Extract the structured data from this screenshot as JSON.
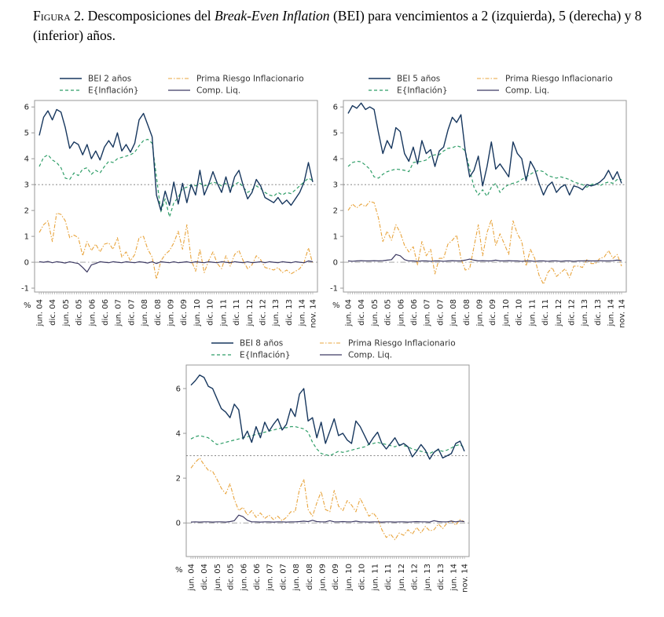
{
  "title": {
    "label": "Figura 2.",
    "pre": "  Descomposiciones del ",
    "italic": "Break-Even Inflation",
    "post": " (BEI) para vencimientos a 2 (izquierda), 5 (derecha) y 8 (inferior) años."
  },
  "axis": {
    "percent_label": "%",
    "n_months": 126,
    "x_tick_months": [
      0,
      6,
      12,
      18,
      24,
      30,
      36,
      42,
      48,
      54,
      60,
      66,
      72,
      78,
      84,
      90,
      96,
      102,
      108,
      114,
      120,
      125
    ],
    "x_tick_labels": [
      "jun. 04",
      "dic. 04",
      "jun. 05",
      "dic. 05",
      "jun. 06",
      "dic. 06",
      "jun. 07",
      "dic. 07",
      "jun. 08",
      "dic. 08",
      "jun. 09",
      "dic. 09",
      "jun. 10",
      "dic. 10",
      "jun. 11",
      "dic. 11",
      "jun. 12",
      "dic. 12",
      "jun. 13",
      "dic. 13",
      "jun. 14",
      "nov. 14"
    ]
  },
  "colors": {
    "bei": "#17375e",
    "einf": "#2f9e68",
    "prima": "#e8a43d",
    "cliq": "#3d3a63",
    "ref3": "#777777",
    "zero": "#999999",
    "box": "#999999",
    "text": "#222222",
    "legend_text": "#333333"
  },
  "chart_data": [
    {
      "type": "line",
      "title": "BEI 2 años",
      "x_unit": "meses desde jun-2004 (muestras bimestrales, jun. 04 a nov. 14)",
      "ylabel": "%",
      "ylim": [
        -1.15,
        6.25
      ],
      "yticks": [
        -1,
        0,
        1,
        2,
        3,
        4,
        5,
        6
      ],
      "reference_lines": [
        3,
        0
      ],
      "grid": false,
      "legend_position": "top",
      "series": [
        {
          "name": "BEI 2 años",
          "key": "bei",
          "values": [
            4.9,
            5.6,
            5.85,
            5.5,
            5.9,
            5.8,
            5.2,
            4.4,
            4.65,
            4.55,
            4.15,
            4.55,
            4.0,
            4.3,
            3.95,
            4.45,
            4.7,
            4.45,
            5.0,
            4.3,
            4.55,
            4.25,
            4.6,
            5.5,
            5.75,
            5.3,
            4.85,
            2.6,
            2.0,
            2.75,
            2.2,
            3.1,
            2.25,
            3.05,
            2.3,
            3.0,
            2.6,
            3.55,
            2.6,
            3.0,
            3.5,
            3.05,
            2.7,
            3.3,
            2.7,
            3.3,
            3.55,
            2.95,
            2.45,
            2.7,
            3.2,
            2.95,
            2.5,
            2.4,
            2.3,
            2.5,
            2.25,
            2.4,
            2.2,
            2.45,
            2.7,
            3.1,
            3.85,
            3.1
          ]
        },
        {
          "name": "E{Inflación}",
          "key": "einf",
          "values": [
            3.7,
            4.05,
            4.15,
            3.95,
            3.85,
            3.65,
            3.25,
            3.2,
            3.45,
            3.35,
            3.6,
            3.65,
            3.4,
            3.55,
            3.45,
            3.7,
            3.9,
            3.85,
            4.0,
            4.05,
            4.1,
            4.15,
            4.25,
            4.5,
            4.7,
            4.75,
            4.6,
            3.3,
            1.95,
            2.45,
            1.75,
            2.3,
            2.5,
            2.85,
            2.9,
            3.0,
            2.95,
            3.05,
            2.95,
            3.0,
            3.1,
            3.05,
            2.95,
            3.05,
            2.85,
            3.0,
            3.1,
            2.9,
            2.7,
            2.8,
            2.95,
            2.85,
            2.7,
            2.6,
            2.55,
            2.7,
            2.6,
            2.7,
            2.65,
            2.8,
            2.95,
            3.1,
            3.25,
            3.15
          ]
        },
        {
          "name": "Prima Riesgo Inflacionario",
          "key": "prima",
          "values": [
            1.15,
            1.45,
            1.6,
            0.8,
            1.9,
            1.85,
            1.6,
            0.95,
            1.05,
            0.95,
            0.25,
            0.8,
            0.45,
            0.7,
            0.4,
            0.7,
            0.75,
            0.5,
            0.95,
            0.2,
            0.4,
            0.05,
            0.3,
            0.95,
            1.0,
            0.5,
            0.2,
            -0.65,
            0.05,
            0.3,
            0.45,
            0.75,
            1.2,
            0.5,
            1.45,
            0.1,
            -0.35,
            0.5,
            -0.4,
            0.05,
            0.4,
            -0.05,
            -0.25,
            0.25,
            -0.15,
            0.3,
            0.45,
            0.05,
            -0.25,
            -0.1,
            0.25,
            0.1,
            -0.2,
            -0.25,
            -0.3,
            -0.2,
            -0.4,
            -0.3,
            -0.45,
            -0.35,
            -0.25,
            0.0,
            0.55,
            -0.05
          ]
        },
        {
          "name": "Comp. Liq.",
          "key": "cliq",
          "values": [
            0.02,
            0.0,
            0.03,
            -0.02,
            0.02,
            0.0,
            -0.03,
            0.02,
            -0.02,
            -0.05,
            -0.2,
            -0.38,
            -0.1,
            -0.05,
            0.02,
            0.0,
            -0.02,
            0.02,
            0.0,
            -0.02,
            0.02,
            0.0,
            -0.02,
            0.02,
            0.0,
            -0.03,
            0.02,
            -0.05,
            0.02,
            0.0,
            -0.02,
            0.02,
            -0.02,
            0.0,
            0.02,
            -0.02,
            0.02,
            0.0,
            -0.02,
            0.02,
            0.0,
            -0.02,
            0.02,
            0.0,
            -0.02,
            0.02,
            0.0,
            -0.02,
            0.02,
            -0.02,
            0.0,
            0.02,
            -0.02,
            0.02,
            0.0,
            -0.02,
            0.02,
            0.0,
            -0.02,
            0.02,
            0.0,
            -0.02,
            0.05,
            0.02
          ]
        }
      ]
    },
    {
      "type": "line",
      "title": "BEI 5 años",
      "x_unit": "meses desde jun-2004 (muestras bimestrales, jun. 04 a nov. 14)",
      "ylabel": "%",
      "ylim": [
        -1.15,
        6.25
      ],
      "yticks": [
        -1,
        0,
        1,
        2,
        3,
        4,
        5,
        6
      ],
      "reference_lines": [
        3,
        0
      ],
      "grid": false,
      "legend_position": "top",
      "series": [
        {
          "name": "BEI 5 años",
          "key": "bei",
          "values": [
            5.75,
            6.05,
            5.95,
            6.15,
            5.9,
            6.0,
            5.9,
            5.0,
            4.2,
            4.7,
            4.4,
            5.2,
            5.05,
            4.2,
            3.9,
            4.45,
            3.8,
            4.7,
            4.2,
            4.35,
            3.7,
            4.3,
            4.45,
            5.1,
            5.6,
            5.4,
            5.7,
            4.3,
            3.3,
            3.55,
            4.1,
            2.95,
            3.7,
            4.65,
            3.6,
            3.8,
            3.55,
            3.3,
            4.65,
            4.2,
            4.0,
            3.15,
            3.9,
            3.6,
            3.05,
            2.6,
            2.95,
            3.1,
            2.7,
            2.9,
            3.0,
            2.6,
            2.95,
            2.9,
            2.8,
            3.0,
            2.95,
            3.0,
            3.1,
            3.25,
            3.55,
            3.2,
            3.5,
            3.05
          ]
        },
        {
          "name": "E{Inflación}",
          "key": "einf",
          "values": [
            3.7,
            3.85,
            3.9,
            3.88,
            3.75,
            3.6,
            3.3,
            3.25,
            3.4,
            3.5,
            3.55,
            3.6,
            3.58,
            3.55,
            3.5,
            3.85,
            3.88,
            3.9,
            3.95,
            4.1,
            4.15,
            4.15,
            4.3,
            4.4,
            4.42,
            4.5,
            4.45,
            4.3,
            3.6,
            2.9,
            2.6,
            2.8,
            2.55,
            2.9,
            3.05,
            2.7,
            2.9,
            3.0,
            3.05,
            3.1,
            3.2,
            3.3,
            3.4,
            3.5,
            3.55,
            3.5,
            3.35,
            3.3,
            3.25,
            3.3,
            3.25,
            3.2,
            3.1,
            3.05,
            3.0,
            2.9,
            3.0,
            3.05,
            2.95,
            3.05,
            3.1,
            3.05,
            3.2,
            3.2
          ]
        },
        {
          "name": "Prima Riesgo Inflacionario",
          "key": "prima",
          "values": [
            2.0,
            2.25,
            2.1,
            2.25,
            2.15,
            2.35,
            2.3,
            1.7,
            0.8,
            1.2,
            0.85,
            1.45,
            1.15,
            0.65,
            0.4,
            0.6,
            -0.1,
            0.8,
            0.25,
            0.5,
            -0.45,
            0.15,
            0.15,
            0.7,
            0.85,
            1.05,
            0.15,
            -0.3,
            -0.25,
            0.6,
            1.45,
            0.25,
            1.15,
            1.65,
            0.65,
            1.1,
            0.7,
            0.3,
            1.6,
            1.1,
            0.8,
            -0.15,
            0.5,
            0.15,
            -0.5,
            -0.85,
            -0.4,
            -0.2,
            -0.55,
            -0.4,
            -0.25,
            -0.6,
            -0.15,
            -0.15,
            -0.2,
            0.1,
            -0.05,
            -0.05,
            0.15,
            0.2,
            0.45,
            0.15,
            0.3,
            -0.15
          ]
        },
        {
          "name": "Comp. Liq.",
          "key": "cliq",
          "values": [
            0.05,
            0.04,
            0.05,
            0.06,
            0.05,
            0.05,
            0.06,
            0.05,
            0.06,
            0.08,
            0.1,
            0.3,
            0.25,
            0.1,
            0.05,
            0.05,
            0.04,
            0.05,
            0.05,
            0.04,
            0.05,
            0.05,
            0.04,
            0.05,
            0.06,
            0.05,
            0.05,
            0.08,
            0.12,
            0.08,
            0.05,
            0.06,
            0.05,
            0.05,
            0.08,
            0.05,
            0.05,
            0.06,
            0.05,
            0.05,
            0.04,
            0.05,
            0.05,
            0.04,
            0.05,
            0.05,
            0.04,
            0.05,
            0.05,
            0.04,
            0.05,
            0.05,
            0.04,
            0.05,
            0.05,
            0.06,
            0.05,
            0.05,
            0.06,
            0.05,
            0.05,
            0.06,
            0.08,
            0.06
          ]
        }
      ]
    },
    {
      "type": "line",
      "title": "BEI 8 años",
      "x_unit": "meses desde jun-2004 (muestras bimestrales, jun. 04 a nov. 14)",
      "ylabel": "%",
      "ylim": [
        -1.5,
        7.05
      ],
      "yticks": [
        0,
        2,
        4,
        6
      ],
      "reference_lines": [
        3,
        0
      ],
      "grid": false,
      "legend_position": "top",
      "series": [
        {
          "name": "BEI 8 años",
          "key": "bei",
          "values": [
            6.15,
            6.35,
            6.6,
            6.5,
            6.1,
            6.0,
            5.55,
            5.1,
            4.95,
            4.7,
            5.3,
            5.05,
            3.75,
            4.1,
            3.6,
            4.3,
            3.8,
            4.5,
            4.1,
            4.4,
            4.65,
            4.15,
            4.4,
            5.1,
            4.75,
            5.75,
            6.0,
            4.55,
            4.7,
            3.8,
            4.5,
            3.55,
            4.1,
            4.65,
            3.9,
            4.0,
            3.7,
            3.55,
            4.55,
            4.3,
            3.9,
            3.5,
            3.8,
            4.05,
            3.55,
            3.3,
            3.55,
            3.8,
            3.45,
            3.55,
            3.4,
            2.95,
            3.2,
            3.5,
            3.25,
            2.85,
            3.15,
            3.3,
            2.9,
            3.0,
            3.1,
            3.55,
            3.65,
            3.2
          ]
        },
        {
          "name": "E{Inflación}",
          "key": "einf",
          "values": [
            3.75,
            3.85,
            3.9,
            3.85,
            3.8,
            3.65,
            3.5,
            3.55,
            3.6,
            3.65,
            3.7,
            3.75,
            3.8,
            3.85,
            3.9,
            3.95,
            4.0,
            4.05,
            4.1,
            4.15,
            4.2,
            4.25,
            4.25,
            4.3,
            4.3,
            4.25,
            4.2,
            4.05,
            3.6,
            3.3,
            3.1,
            3.05,
            3.0,
            3.1,
            3.2,
            3.15,
            3.2,
            3.25,
            3.3,
            3.35,
            3.4,
            3.5,
            3.55,
            3.6,
            3.55,
            3.5,
            3.45,
            3.4,
            3.5,
            3.45,
            3.4,
            3.3,
            3.25,
            3.2,
            3.15,
            3.1,
            3.2,
            3.25,
            3.2,
            3.25,
            3.35,
            3.45,
            3.5,
            3.35
          ]
        },
        {
          "name": "Prima Riesgo Inflacionario",
          "key": "prima",
          "values": [
            2.45,
            2.7,
            2.9,
            2.6,
            2.35,
            2.3,
            1.95,
            1.55,
            1.3,
            1.75,
            1.05,
            0.55,
            0.7,
            0.35,
            0.55,
            0.25,
            0.45,
            0.2,
            0.35,
            0.15,
            0.3,
            0.1,
            0.25,
            0.5,
            0.5,
            1.5,
            1.95,
            0.6,
            0.3,
            0.9,
            1.4,
            0.6,
            0.5,
            1.45,
            0.75,
            0.55,
            1.0,
            0.8,
            0.5,
            1.1,
            0.7,
            0.3,
            0.45,
            0.2,
            -0.3,
            -0.65,
            -0.5,
            -0.75,
            -0.45,
            -0.55,
            -0.3,
            -0.5,
            -0.2,
            -0.45,
            -0.15,
            -0.35,
            -0.3,
            -0.05,
            -0.25,
            0.0,
            0.1,
            -0.1,
            0.15,
            0.05
          ]
        },
        {
          "name": "Comp. Liq.",
          "key": "cliq",
          "values": [
            0.04,
            0.05,
            0.04,
            0.05,
            0.05,
            0.04,
            0.05,
            0.05,
            0.04,
            0.06,
            0.1,
            0.35,
            0.28,
            0.12,
            0.05,
            0.05,
            0.04,
            0.05,
            0.05,
            0.04,
            0.05,
            0.05,
            0.04,
            0.05,
            0.05,
            0.06,
            0.08,
            0.06,
            0.12,
            0.06,
            0.05,
            0.05,
            0.1,
            0.05,
            0.05,
            0.06,
            0.05,
            0.05,
            0.08,
            0.05,
            0.05,
            0.04,
            0.05,
            0.05,
            0.04,
            0.05,
            0.05,
            0.04,
            0.05,
            0.05,
            0.04,
            0.05,
            0.06,
            0.05,
            0.05,
            0.04,
            0.1,
            0.06,
            0.05,
            0.05,
            0.08,
            0.05,
            0.08,
            0.06
          ]
        }
      ]
    }
  ]
}
